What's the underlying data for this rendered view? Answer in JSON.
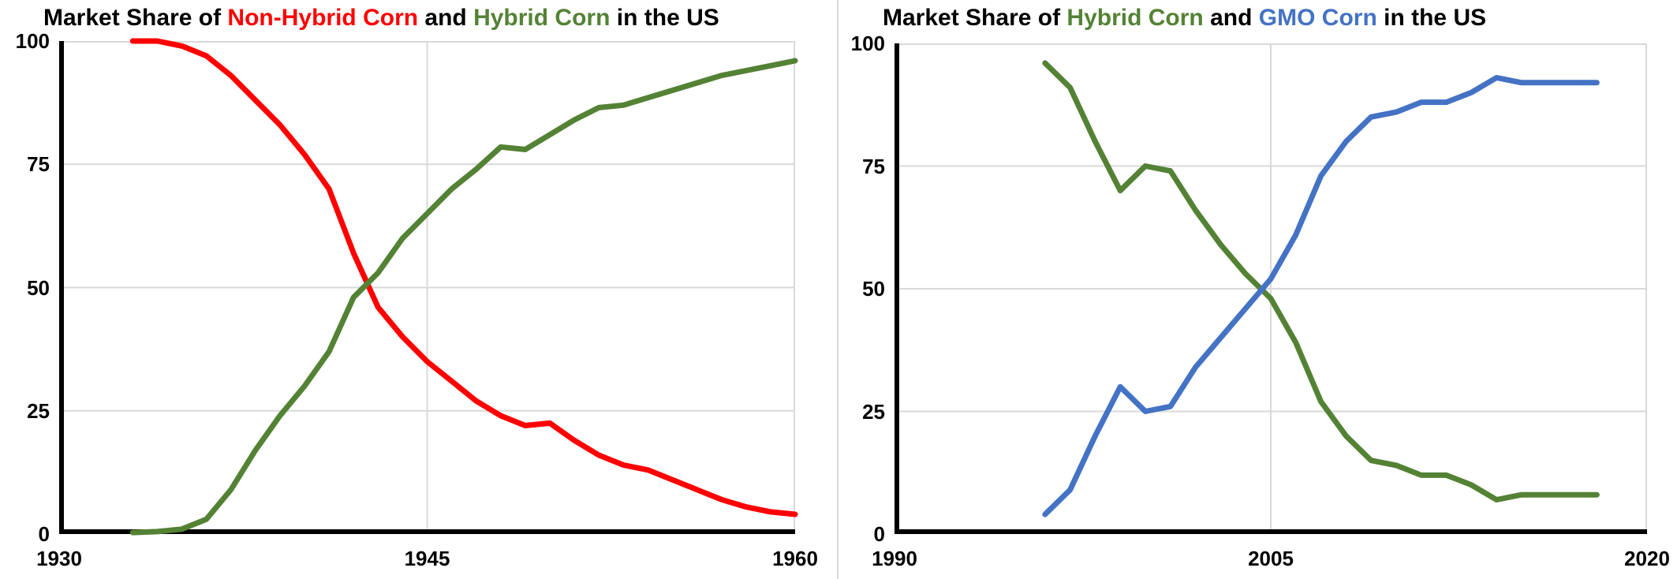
{
  "colors": {
    "black": "#000000",
    "red": "#FF0000",
    "green": "#548235",
    "blue": "#4472C4",
    "grid": "#D9D9D9",
    "axis": "#000000",
    "background": "#FFFFFF",
    "divider": "#D9D9D9"
  },
  "chart_data": [
    {
      "type": "line",
      "title": "Market Share of Non-Hybrid Corn and Hybrid Corn in the US",
      "title_parts": [
        {
          "text": "Market Share of ",
          "color": "black"
        },
        {
          "text": "Non-Hybrid Corn",
          "color": "red"
        },
        {
          "text": " and ",
          "color": "black"
        },
        {
          "text": "Hybrid Corn",
          "color": "green"
        },
        {
          "text": " in the US",
          "color": "black"
        }
      ],
      "xlabel": "",
      "ylabel": "",
      "xlim": [
        1930,
        1960
      ],
      "ylim": [
        0,
        100
      ],
      "grid": true,
      "legend": "none (colors encoded in title)",
      "x_tick_values": [
        1930,
        1945,
        1960
      ],
      "x_tick_labels": [
        "1930",
        "1945",
        "1960"
      ],
      "y_tick_values": [
        0,
        25,
        50,
        75,
        100
      ],
      "y_tick_labels": [
        "0",
        "25",
        "50",
        "75",
        "100"
      ],
      "x": [
        1933,
        1934,
        1935,
        1936,
        1937,
        1938,
        1939,
        1940,
        1941,
        1942,
        1943,
        1944,
        1945,
        1946,
        1947,
        1948,
        1949,
        1950,
        1951,
        1952,
        1953,
        1954,
        1955,
        1956,
        1957,
        1958,
        1959,
        1960
      ],
      "series": [
        {
          "name": "Non-Hybrid Corn",
          "color_key": "red",
          "values": [
            100,
            100,
            99,
            97,
            93,
            88,
            83,
            77,
            70,
            57,
            46,
            40,
            35,
            31,
            27,
            24,
            22,
            22.5,
            19,
            16,
            14,
            13,
            11,
            9,
            7,
            5.5,
            4.5,
            4
          ]
        },
        {
          "name": "Hybrid Corn",
          "color_key": "green",
          "values": [
            0.3,
            0.5,
            1,
            3,
            9,
            17,
            24,
            30,
            37,
            48,
            53,
            60,
            65,
            70,
            74,
            78.5,
            78,
            81,
            84,
            86.5,
            87,
            88.5,
            90,
            91.5,
            93,
            94,
            95,
            96
          ]
        }
      ]
    },
    {
      "type": "line",
      "title": "Market Share of Hybrid Corn and GMO Corn in the US",
      "title_parts": [
        {
          "text": "Market Share of ",
          "color": "black"
        },
        {
          "text": "Hybrid Corn",
          "color": "green"
        },
        {
          "text": " and ",
          "color": "black"
        },
        {
          "text": "GMO Corn",
          "color": "blue"
        },
        {
          "text": " in the US",
          "color": "black"
        }
      ],
      "xlabel": "",
      "ylabel": "",
      "xlim": [
        1990,
        2020
      ],
      "ylim": [
        0,
        100
      ],
      "grid": true,
      "legend": "none (colors encoded in title)",
      "x_tick_values": [
        1990,
        2005,
        2020
      ],
      "x_tick_labels": [
        "1990",
        "2005",
        "2020"
      ],
      "y_tick_values": [
        0,
        25,
        50,
        75,
        100
      ],
      "y_tick_labels": [
        "0",
        "25",
        "50",
        "75",
        "100"
      ],
      "x": [
        1996,
        1997,
        1998,
        1999,
        2000,
        2001,
        2002,
        2003,
        2004,
        2005,
        2006,
        2007,
        2008,
        2009,
        2010,
        2011,
        2012,
        2013,
        2014,
        2015,
        2016,
        2017,
        2018
      ],
      "series": [
        {
          "name": "Hybrid Corn",
          "color_key": "green",
          "values": [
            96,
            91,
            80,
            70,
            75,
            74,
            66,
            59,
            53,
            48,
            39,
            27,
            20,
            15,
            14,
            12,
            12,
            10,
            7,
            8,
            8,
            8,
            8
          ]
        },
        {
          "name": "GMO Corn",
          "color_key": "blue",
          "values": [
            4,
            9,
            20,
            30,
            25,
            26,
            34,
            40,
            46,
            52,
            61,
            73,
            80,
            85,
            86,
            88,
            88,
            90,
            93,
            92,
            92,
            92,
            92
          ]
        }
      ]
    }
  ]
}
